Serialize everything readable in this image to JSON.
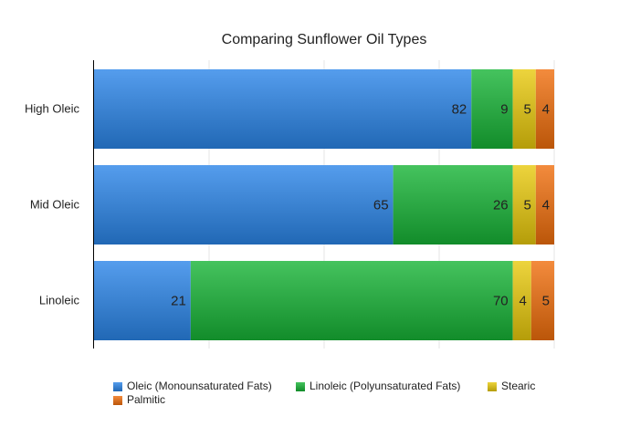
{
  "chart_data": {
    "type": "bar",
    "orientation": "horizontal",
    "stacked": true,
    "title": "Comparing Sunflower Oil Types",
    "categories": [
      "High Oleic",
      "Mid Oleic",
      "Linoleic"
    ],
    "series": [
      {
        "name": "Oleic (Monounsaturated Fats)",
        "values": [
          82,
          65,
          21
        ],
        "color": "#2a85e8"
      },
      {
        "name": "Linoleic (Polyunsaturated Fats)",
        "values": [
          9,
          26,
          70
        ],
        "color": "#17b436"
      },
      {
        "name": "Stearic",
        "values": [
          5,
          5,
          4
        ],
        "color": "#e8c90c"
      },
      {
        "name": "Palmitic",
        "values": [
          4,
          4,
          5
        ],
        "color": "#f06e0c"
      }
    ],
    "xlim": [
      0,
      100
    ],
    "grid": true,
    "legend_position": "bottom"
  }
}
